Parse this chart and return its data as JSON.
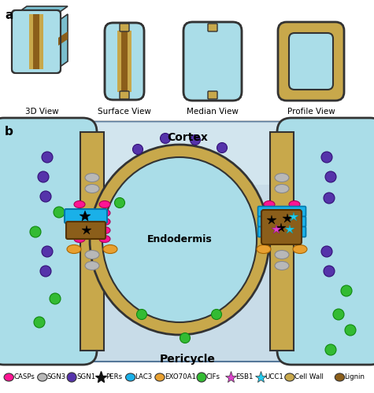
{
  "colors": {
    "cell_light": "#aadde8",
    "cell_dark": "#7abece",
    "cell_wall": "#c8a84b",
    "lignin": "#8B5E1A",
    "casp_pink": "#FF1493",
    "sgn3_gray": "#b8b8b8",
    "sgn1_purple": "#5533aa",
    "lac3_cyan": "#1ab0e8",
    "exo70_orange": "#e8a030",
    "cifs_green": "#33bb33",
    "esb1_star": "#dd44cc",
    "ucc1_star": "#22ccee",
    "bg_panel_b": "#c8dce8",
    "white": "#ffffff"
  },
  "labels": {
    "a": "a",
    "b": "b",
    "3d": "3D View",
    "surface": "Surface View",
    "median": "Median View",
    "profile": "Profile View",
    "cortex": "Cortex",
    "endodermis": "Endodermis",
    "pericycle": "Pericycle"
  },
  "legend": [
    {
      "label": "CASPs",
      "color": "#FF1493",
      "shape": "ellipse_h"
    },
    {
      "label": "SGN3",
      "color": "#b8b8b8",
      "shape": "ellipse_h"
    },
    {
      "label": "SGN1",
      "color": "#5533aa",
      "shape": "circle"
    },
    {
      "label": "PERs",
      "color": "#111111",
      "shape": "star"
    },
    {
      "label": "LAC3",
      "color": "#1ab0e8",
      "shape": "ellipse_h"
    },
    {
      "label": "EXO70A1",
      "color": "#e8a030",
      "shape": "ellipse_h"
    },
    {
      "label": "CIFs",
      "color": "#33bb33",
      "shape": "circle"
    },
    {
      "label": "ESB1",
      "color": "#dd44cc",
      "shape": "star6"
    },
    {
      "label": "UCC1",
      "color": "#22ccee",
      "shape": "star6"
    },
    {
      "label": "Cell Wall",
      "color": "#c8a84b",
      "shape": "ellipse_h"
    },
    {
      "label": "Lignin",
      "color": "#8B5E1A",
      "shape": "ellipse_h"
    }
  ]
}
